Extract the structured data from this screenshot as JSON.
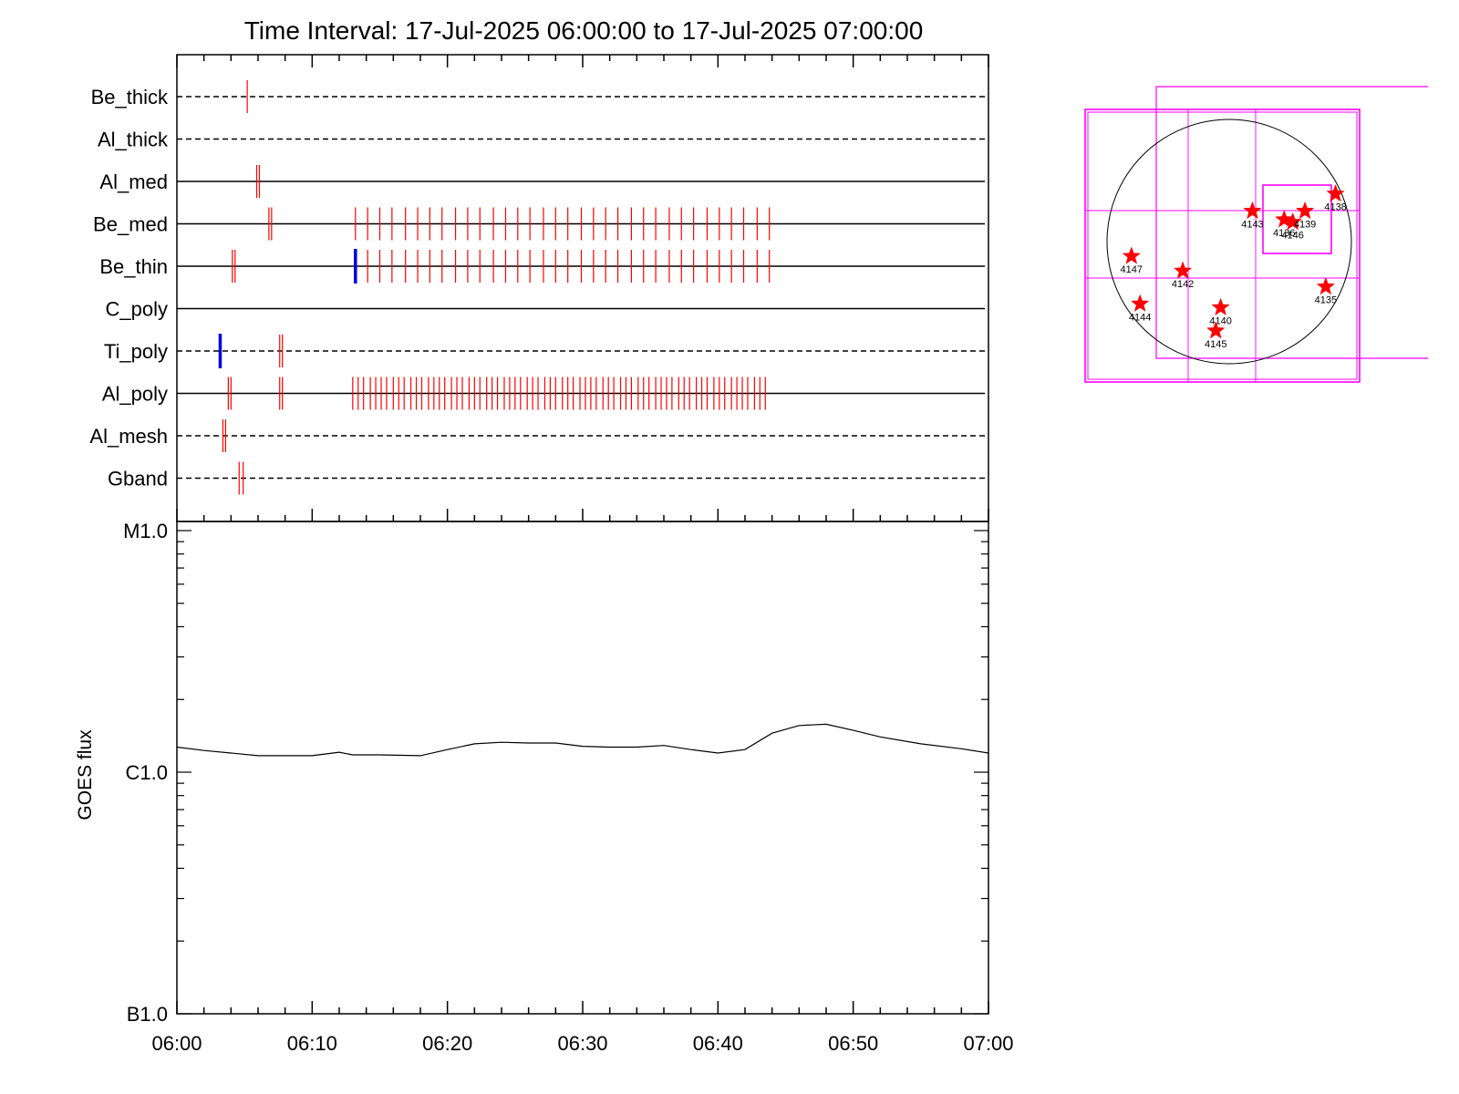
{
  "chart_data": [
    {
      "type": "timeline",
      "title": "Time Interval: 17-Jul-2025 06:00:00 to 17-Jul-2025 07:00:00",
      "x_unit": "minutes after 06:00",
      "xlim": [
        0,
        60
      ],
      "rows": [
        {
          "label": "Be_thick",
          "line": "dashed",
          "red_marks": [
            5.2
          ],
          "blue_marks": []
        },
        {
          "label": "Al_thick",
          "line": "dashed",
          "red_marks": [],
          "blue_marks": []
        },
        {
          "label": "Al_med",
          "line": "solid",
          "red_marks": [
            5.9,
            6.1
          ],
          "blue_marks": []
        },
        {
          "label": "Be_med",
          "line": "solid",
          "red_marks": [
            6.8,
            7.0,
            13.2,
            14.1,
            15.0,
            15.9,
            16.9,
            17.8,
            18.7,
            19.6,
            20.6,
            21.5,
            22.4,
            23.4,
            24.3,
            25.2,
            26.1,
            27.1,
            28.0,
            28.9,
            29.9,
            30.8,
            31.7,
            32.6,
            33.6,
            34.5,
            35.4,
            36.4,
            37.3,
            38.2,
            39.2,
            40.1,
            41.0,
            41.9,
            42.9,
            43.8
          ],
          "blue_marks": []
        },
        {
          "label": "Be_thin",
          "line": "solid",
          "red_marks": [
            4.1,
            4.3,
            14.1,
            15.0,
            15.9,
            16.9,
            17.8,
            18.7,
            19.6,
            20.6,
            21.5,
            22.4,
            23.4,
            24.3,
            25.2,
            26.1,
            27.1,
            28.0,
            28.9,
            29.9,
            30.8,
            31.7,
            32.6,
            33.6,
            34.5,
            35.4,
            36.4,
            37.3,
            38.2,
            39.2,
            40.1,
            41.0,
            41.9,
            42.9,
            43.8
          ],
          "blue_marks": [
            13.2
          ]
        },
        {
          "label": "C_poly",
          "line": "solid",
          "red_marks": [],
          "blue_marks": []
        },
        {
          "label": "Ti_poly",
          "line": "dashed",
          "red_marks": [
            7.6,
            7.8
          ],
          "blue_marks": [
            3.2
          ]
        },
        {
          "label": "Al_poly",
          "line": "solid",
          "red_marks": [
            3.8,
            4.0,
            7.6,
            7.8,
            13.0,
            13.4,
            13.8,
            14.3,
            14.7,
            15.1,
            15.5,
            16.0,
            16.4,
            16.8,
            17.3,
            17.7,
            18.1,
            18.6,
            19.0,
            19.4,
            19.8,
            20.3,
            20.7,
            21.1,
            21.6,
            22.0,
            22.4,
            22.9,
            23.3,
            23.7,
            24.2,
            24.6,
            25.0,
            25.4,
            25.9,
            26.3,
            26.7,
            27.2,
            27.6,
            28.0,
            28.5,
            28.9,
            29.3,
            29.8,
            30.2,
            30.6,
            31.0,
            31.5,
            31.9,
            32.3,
            32.8,
            33.2,
            33.6,
            34.1,
            34.5,
            34.9,
            35.4,
            35.8,
            36.2,
            36.6,
            37.1,
            37.5,
            37.9,
            38.4,
            38.8,
            39.2,
            39.7,
            40.1,
            40.5,
            41.0,
            41.4,
            41.8,
            42.2,
            42.7,
            43.1,
            43.5
          ],
          "blue_marks": []
        },
        {
          "label": "Al_mesh",
          "line": "dashed",
          "red_marks": [
            3.4,
            3.6
          ],
          "blue_marks": []
        },
        {
          "label": "Gband",
          "line": "dashed",
          "red_marks": [
            4.6,
            4.9
          ],
          "blue_marks": []
        }
      ],
      "colors": {
        "marks": "#ff0000",
        "blue_marks": "#0000dd",
        "lines": "#000000"
      }
    },
    {
      "type": "line",
      "ylabel": "GOES flux",
      "y_scale": "log",
      "y_ticks": [
        {
          "label": "B1.0",
          "value": 1e-07
        },
        {
          "label": "C1.0",
          "value": 1e-06
        },
        {
          "label": "M1.0",
          "value": 1e-05
        }
      ],
      "ylim": [
        1e-07,
        1e-05
      ],
      "x_ticks": [
        "06:00",
        "06:10",
        "06:20",
        "06:30",
        "06:40",
        "06:50",
        "07:00"
      ],
      "xlim": [
        0,
        60
      ],
      "series": [
        {
          "x": [
            0,
            2,
            4,
            6,
            8,
            10,
            11,
            12,
            13,
            15,
            18,
            20,
            22,
            24,
            26,
            28,
            30,
            32,
            34,
            36,
            38,
            40,
            42,
            44,
            46,
            48,
            50,
            52,
            55,
            58,
            60
          ],
          "y": [
            1.27e-06,
            1.23e-06,
            1.2e-06,
            1.17e-06,
            1.17e-06,
            1.17e-06,
            1.19e-06,
            1.21e-06,
            1.18e-06,
            1.18e-06,
            1.17e-06,
            1.24e-06,
            1.31e-06,
            1.33e-06,
            1.32e-06,
            1.32e-06,
            1.28e-06,
            1.27e-06,
            1.27e-06,
            1.29e-06,
            1.24e-06,
            1.2e-06,
            1.24e-06,
            1.45e-06,
            1.56e-06,
            1.58e-06,
            1.49e-06,
            1.4e-06,
            1.31e-06,
            1.25e-06,
            1.2e-06
          ]
        }
      ],
      "color": "#000000"
    },
    {
      "type": "scatter",
      "description_free": true,
      "disk": {
        "cx": 0,
        "cy": 0,
        "r": 1
      },
      "active_regions": [
        {
          "label": "4138",
          "x": 0.87,
          "y": 0.39
        },
        {
          "label": "4143",
          "x": 0.19,
          "y": 0.25
        },
        {
          "label": "4136",
          "x": 0.45,
          "y": 0.18
        },
        {
          "label": "4146",
          "x": 0.52,
          "y": 0.16
        },
        {
          "label": "4139",
          "x": 0.62,
          "y": 0.25
        },
        {
          "label": "4147",
          "x": -0.8,
          "y": -0.12
        },
        {
          "label": "4142",
          "x": -0.38,
          "y": -0.24
        },
        {
          "label": "4144",
          "x": -0.73,
          "y": -0.51
        },
        {
          "label": "4140",
          "x": -0.07,
          "y": -0.54
        },
        {
          "label": "4145",
          "x": -0.11,
          "y": -0.73
        },
        {
          "label": "4135",
          "x": 0.79,
          "y": -0.37
        }
      ],
      "colors": {
        "disk": "#000000",
        "marker": "#ff0000",
        "fov_boxes": "#ff00ff"
      }
    }
  ]
}
